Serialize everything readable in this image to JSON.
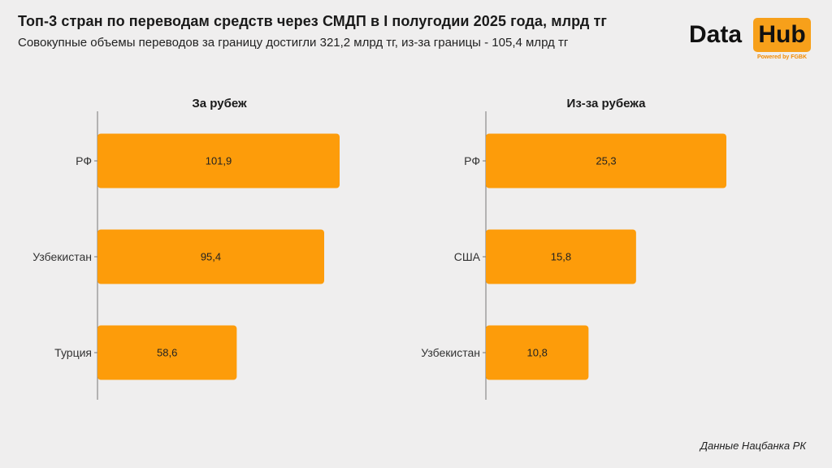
{
  "header": {
    "title": "Топ-3 стран по переводам средств через СМДП в I полугодии 2025 года, млрд тг",
    "subtitle": "Совокупные объемы переводов за границу достигли 321,2 млрд тг, из-за границы - 105,4 млрд тг"
  },
  "logo": {
    "word_left": "Data",
    "word_right": "Hub",
    "tagline": "Powered by FGBK",
    "accent_color": "#f7a01a"
  },
  "source": "Данные Нацбанка РК",
  "colors": {
    "bar": "#fd9c0a",
    "axis": "#777777",
    "background": "#efeeee"
  },
  "chart_data": [
    {
      "type": "bar",
      "orientation": "horizontal",
      "title": "За рубеж",
      "categories": [
        "РФ",
        "Узбекистан",
        "Турция"
      ],
      "values": [
        101.9,
        95.4,
        58.6
      ],
      "labels": [
        "101,9",
        "95,4",
        "58,6"
      ],
      "xlim": [
        0,
        105
      ],
      "grid": false
    },
    {
      "type": "bar",
      "orientation": "horizontal",
      "title": "Из-за рубежа",
      "categories": [
        "РФ",
        "США",
        "Узбекистан"
      ],
      "values": [
        25.3,
        15.8,
        10.8
      ],
      "labels": [
        "25,3",
        "15,8",
        "10,8"
      ],
      "xlim": [
        0,
        26
      ],
      "grid": false
    }
  ]
}
